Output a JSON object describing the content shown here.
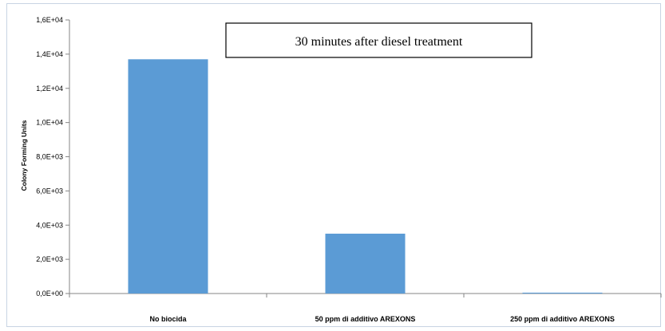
{
  "chart_data": {
    "type": "bar",
    "title": "30 minutes after diesel treatment",
    "ylabel": "Colony Forming Units",
    "xlabel": "",
    "categories": [
      "No biocida",
      "50 ppm di additivo AREXONS",
      "250 ppm di additivo AREXONS"
    ],
    "values": [
      13700,
      3500,
      50
    ],
    "ylim": [
      0,
      16000
    ],
    "yticks": [
      0,
      2000,
      4000,
      6000,
      8000,
      10000,
      12000,
      14000,
      16000
    ],
    "ytick_labels": [
      "0,0E+00",
      "2,0E+03",
      "4,0E+03",
      "6,0E+03",
      "8,0E+03",
      "1,0E+04",
      "1,2E+04",
      "1,4E+04",
      "1,6E+04"
    ],
    "grid": false,
    "legend": "none",
    "colors": {
      "bar": "#5b9bd5",
      "axis": "#868686"
    }
  }
}
